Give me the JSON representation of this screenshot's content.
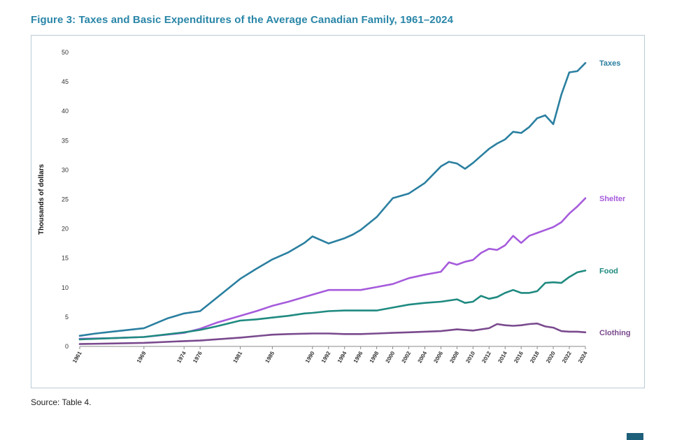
{
  "title": "Figure 3: Taxes and Basic Expenditures of the Average Canadian Family, 1961–2024",
  "source": "Source: Table 4.",
  "chart_data": {
    "type": "line",
    "ylabel": "Thousands of dollars",
    "xlabel": "",
    "ylim": [
      0,
      50
    ],
    "yticks": [
      0,
      5,
      10,
      15,
      20,
      25,
      30,
      35,
      40,
      45,
      50
    ],
    "xlim": [
      1961,
      2024
    ],
    "xticks": [
      1961,
      1969,
      1974,
      1976,
      1981,
      1985,
      1990,
      1992,
      1994,
      1996,
      1998,
      2000,
      2002,
      2004,
      2006,
      2008,
      2010,
      2012,
      2014,
      2016,
      2018,
      2020,
      2022,
      2024
    ],
    "grid": false,
    "legend": "labels at line ends (right)",
    "series": [
      {
        "name": "Taxes",
        "color": "#2a7fa0",
        "x": [
          1961,
          1963,
          1965,
          1967,
          1969,
          1972,
          1974,
          1976,
          1978,
          1981,
          1983,
          1985,
          1987,
          1989,
          1990,
          1992,
          1994,
          1995,
          1996,
          1998,
          2000,
          2002,
          2004,
          2006,
          2007,
          2008,
          2009,
          2010,
          2011,
          2012,
          2013,
          2014,
          2015,
          2016,
          2017,
          2018,
          2019,
          2020,
          2021,
          2022,
          2023,
          2024
        ],
        "values": [
          1.8,
          2.2,
          2.5,
          2.8,
          3.1,
          4.8,
          5.6,
          6.0,
          8.2,
          11.5,
          13.2,
          14.8,
          16.0,
          17.6,
          18.7,
          17.5,
          18.4,
          19.0,
          19.8,
          22.0,
          25.2,
          26.0,
          27.8,
          30.6,
          31.4,
          31.1,
          30.2,
          31.2,
          32.4,
          33.6,
          34.5,
          35.2,
          36.5,
          36.3,
          37.3,
          38.8,
          39.3,
          37.8,
          42.8,
          46.6,
          46.8,
          48.2
        ]
      },
      {
        "name": "Shelter",
        "color": "#a65bdc",
        "x": [
          1961,
          1965,
          1969,
          1974,
          1976,
          1978,
          1981,
          1983,
          1985,
          1987,
          1989,
          1990,
          1992,
          1994,
          1996,
          1998,
          2000,
          2002,
          2004,
          2006,
          2007,
          2008,
          2009,
          2010,
          2011,
          2012,
          2013,
          2014,
          2015,
          2016,
          2017,
          2018,
          2019,
          2020,
          2021,
          2022,
          2023,
          2024
        ],
        "values": [
          1.3,
          1.4,
          1.6,
          2.3,
          3.0,
          4.0,
          5.2,
          6.0,
          6.9,
          7.6,
          8.4,
          8.8,
          9.6,
          9.6,
          9.6,
          10.1,
          10.6,
          11.6,
          12.2,
          12.7,
          14.3,
          13.9,
          14.4,
          14.7,
          15.9,
          16.6,
          16.4,
          17.2,
          18.8,
          17.6,
          18.8,
          19.3,
          19.8,
          20.3,
          21.1,
          22.6,
          23.8,
          25.2
        ]
      },
      {
        "name": "Food",
        "color": "#1f8a80",
        "x": [
          1961,
          1965,
          1969,
          1974,
          1976,
          1978,
          1981,
          1983,
          1985,
          1987,
          1989,
          1990,
          1992,
          1994,
          1996,
          1998,
          2000,
          2002,
          2004,
          2006,
          2008,
          2009,
          2010,
          2011,
          2012,
          2013,
          2014,
          2015,
          2016,
          2017,
          2018,
          2019,
          2020,
          2021,
          2022,
          2023,
          2024
        ],
        "values": [
          1.2,
          1.4,
          1.6,
          2.4,
          2.8,
          3.4,
          4.4,
          4.6,
          4.9,
          5.2,
          5.6,
          5.7,
          6.0,
          6.1,
          6.1,
          6.1,
          6.6,
          7.1,
          7.4,
          7.6,
          8.0,
          7.4,
          7.6,
          8.6,
          8.1,
          8.4,
          9.1,
          9.6,
          9.1,
          9.1,
          9.4,
          10.8,
          10.9,
          10.8,
          11.8,
          12.6,
          12.9
        ]
      },
      {
        "name": "Clothing",
        "color": "#7a4a8e",
        "x": [
          1961,
          1965,
          1969,
          1974,
          1976,
          1981,
          1985,
          1987,
          1990,
          1992,
          1994,
          1996,
          1998,
          2000,
          2002,
          2004,
          2006,
          2008,
          2010,
          2012,
          2013,
          2014,
          2015,
          2016,
          2017,
          2018,
          2019,
          2020,
          2021,
          2022,
          2023,
          2024
        ],
        "values": [
          0.4,
          0.5,
          0.6,
          0.9,
          1.0,
          1.5,
          2.0,
          2.1,
          2.2,
          2.2,
          2.1,
          2.1,
          2.2,
          2.3,
          2.4,
          2.5,
          2.6,
          2.9,
          2.7,
          3.1,
          3.8,
          3.6,
          3.5,
          3.6,
          3.8,
          3.9,
          3.4,
          3.2,
          2.6,
          2.5,
          2.5,
          2.4
        ]
      }
    ]
  }
}
